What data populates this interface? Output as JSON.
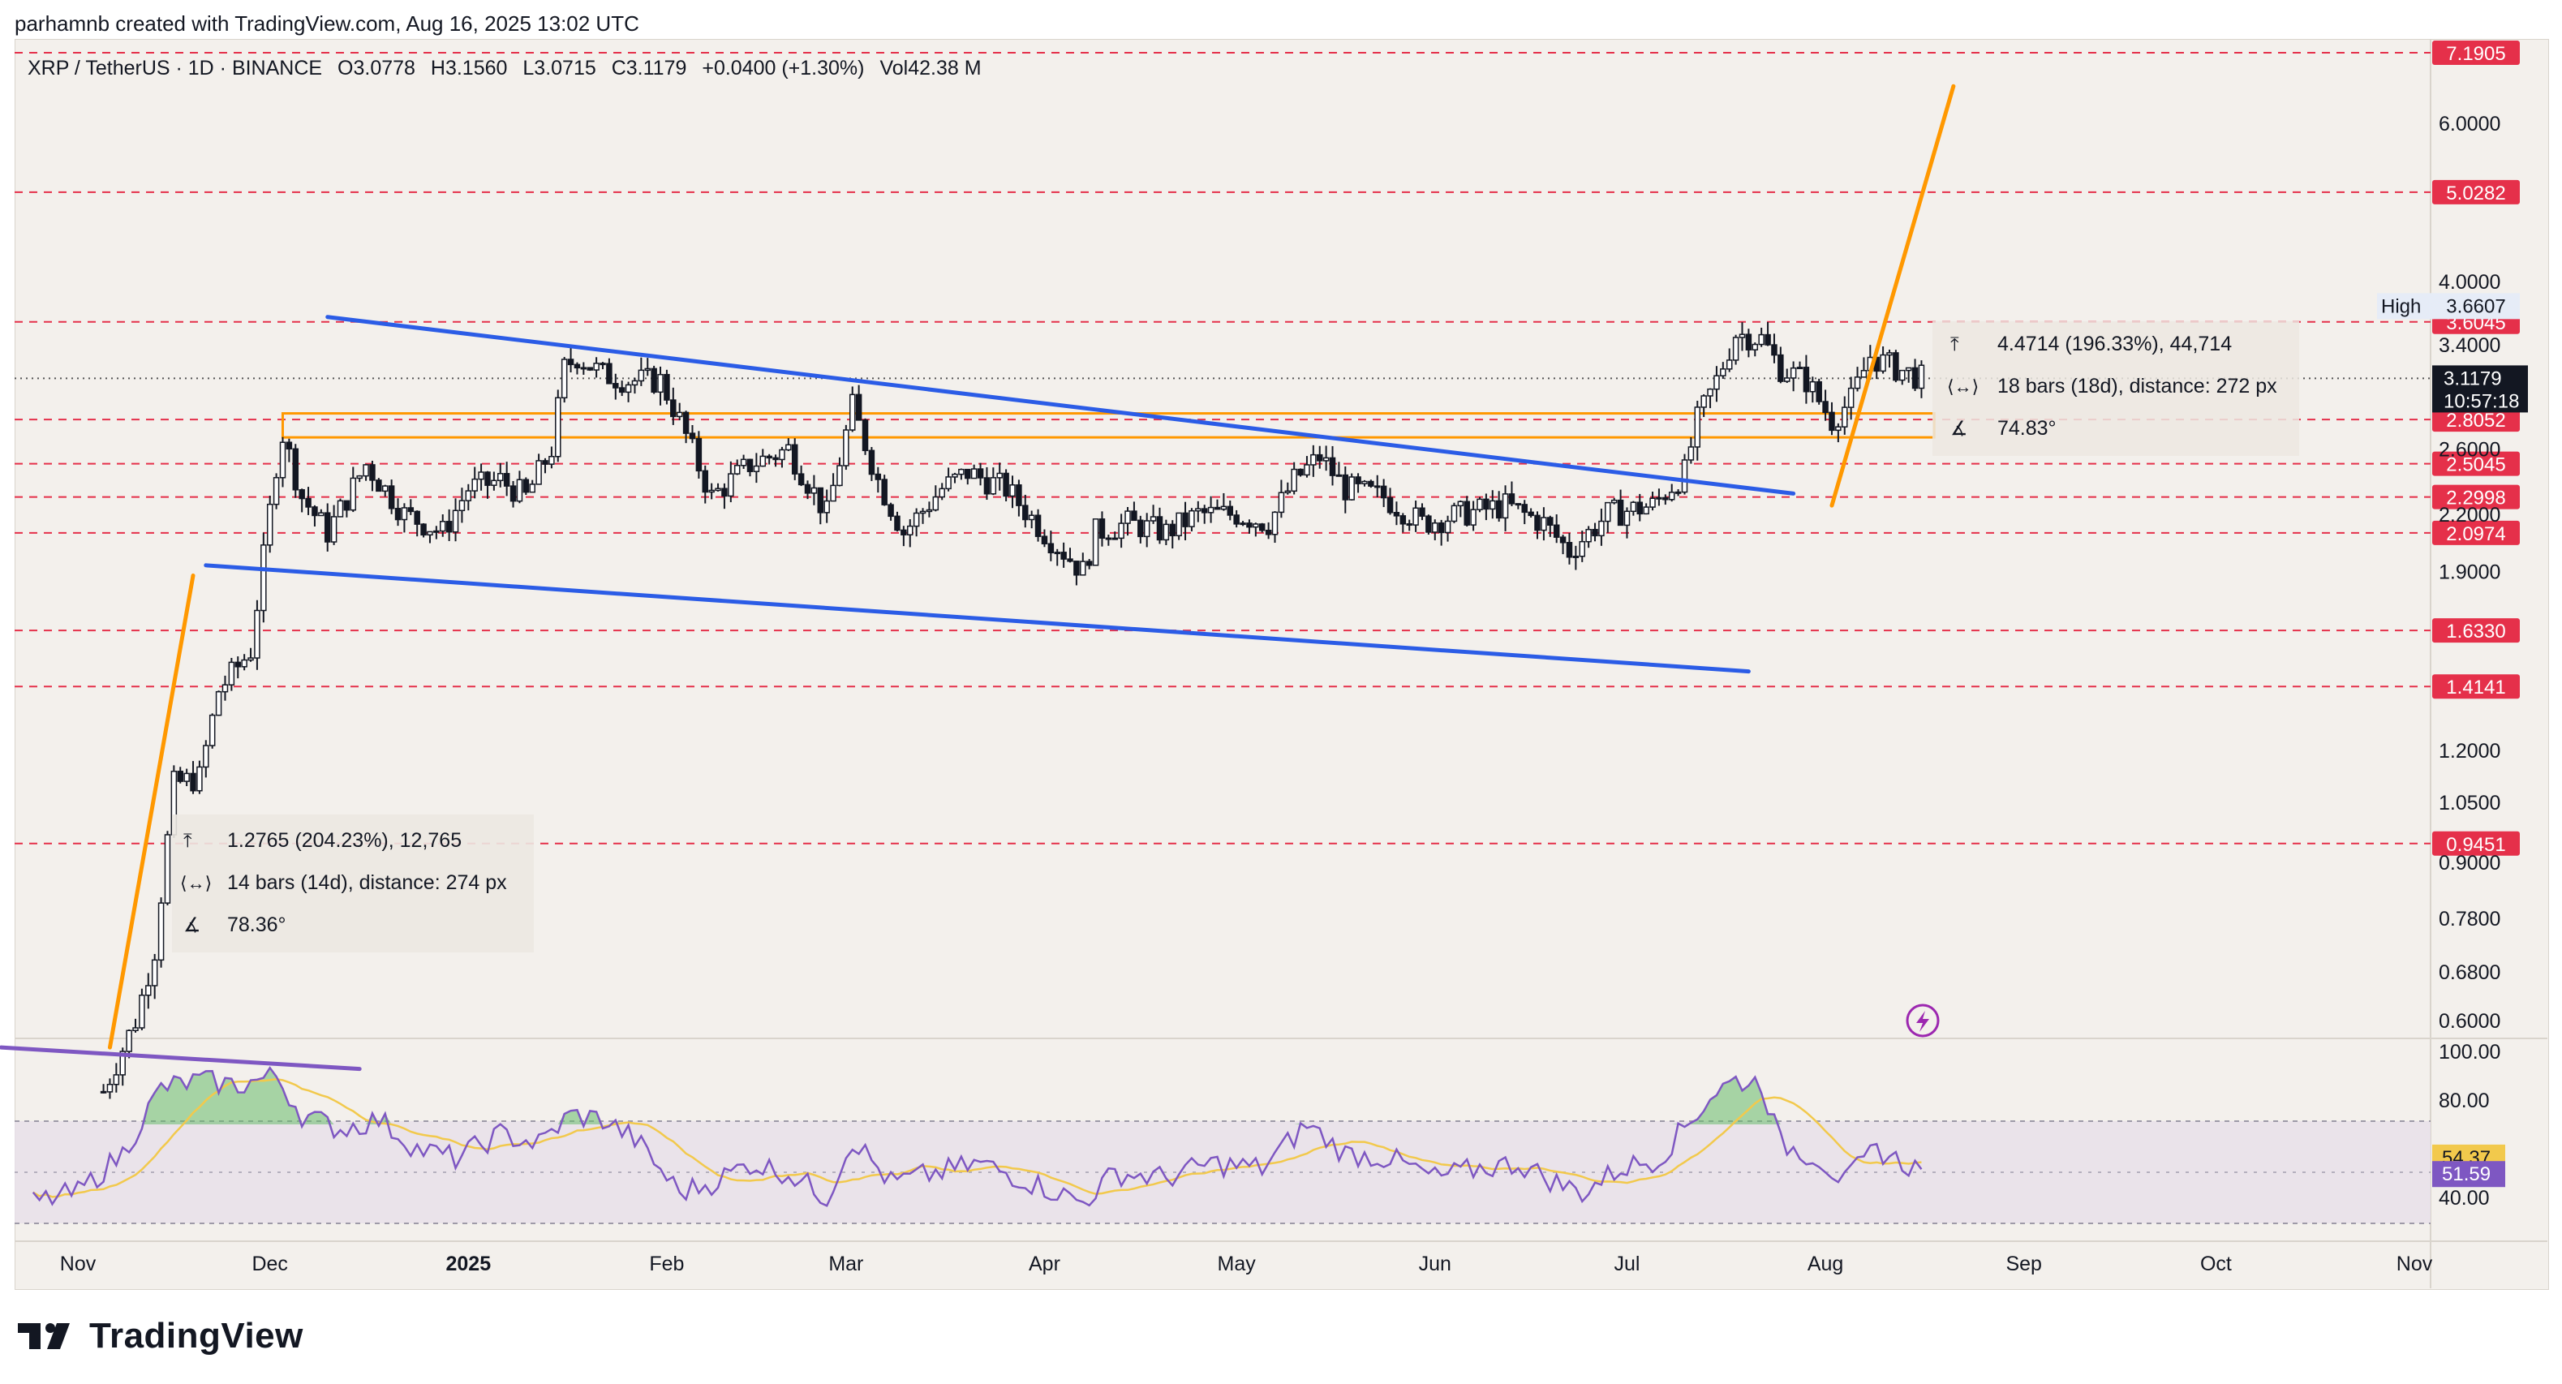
{
  "attribution": "parhamnb created with TradingView.com, Aug 16, 2025 13:02 UTC",
  "header": {
    "symbol": "XRP / TetherUS · 1D · BINANCE",
    "open": "O3.0778",
    "high": "H3.1560",
    "low": "L3.0715",
    "close": "C3.1179",
    "change": "+0.0400 (+1.30%)",
    "volume": "Vol42.38 M"
  },
  "brand": "TradingView",
  "colors": {
    "background": "#f3f0ec",
    "candle": "#131722",
    "trendline_blue": "#2b5ce6",
    "trendline_orange": "#ff9800",
    "level_line": "#e5304a",
    "rsi": "#7e57c2",
    "rsi_ma": "#f2c94c"
  },
  "chart_data": {
    "type": "candlestick",
    "scale": "log",
    "price_axis": {
      "ticks": [
        "6.0000",
        "4.0000",
        "3.4000",
        "2.6000",
        "2.2000",
        "1.9000",
        "1.2000",
        "1.0500",
        "0.9000",
        "0.7800",
        "0.6800",
        "0.6000"
      ],
      "high_label": "High",
      "high_value": "3.6607",
      "last_price": "3.1179",
      "countdown": "10:57:18"
    },
    "levels": [
      "7.1905",
      "5.0282",
      "3.6045",
      "2.8052",
      "2.5045",
      "2.2998",
      "2.0974",
      "1.6330",
      "1.4141",
      "0.9451"
    ],
    "time_axis": [
      "Nov",
      "Dec",
      "2025",
      "Feb",
      "Mar",
      "Apr",
      "May",
      "Jun",
      "Jul",
      "Aug",
      "Sep",
      "Oct",
      "Nov"
    ],
    "close_path": [
      [
        "2024-11-05",
        0.5
      ],
      [
        "2024-11-10",
        0.6
      ],
      [
        "2024-11-13",
        0.72
      ],
      [
        "2024-11-16",
        1.1
      ],
      [
        "2024-11-20",
        1.12
      ],
      [
        "2024-11-23",
        1.4
      ],
      [
        "2024-11-28",
        1.55
      ],
      [
        "2024-12-02",
        2.5
      ],
      [
        "2024-12-03",
        2.7
      ],
      [
        "2024-12-06",
        2.3
      ],
      [
        "2024-12-10",
        2.1
      ],
      [
        "2024-12-16",
        2.5
      ],
      [
        "2024-12-22",
        2.2
      ],
      [
        "2024-12-28",
        2.1
      ],
      [
        "2025-01-01",
        2.35
      ],
      [
        "2025-01-06",
        2.4
      ],
      [
        "2025-01-10",
        2.3
      ],
      [
        "2025-01-14",
        2.6
      ],
      [
        "2025-01-16",
        3.2
      ],
      [
        "2025-01-18",
        3.3
      ],
      [
        "2025-01-22",
        3.15
      ],
      [
        "2025-01-26",
        3.1
      ],
      [
        "2025-01-31",
        3.1
      ],
      [
        "2025-02-03",
        2.8
      ],
      [
        "2025-02-08",
        2.3
      ],
      [
        "2025-02-14",
        2.5
      ],
      [
        "2025-02-20",
        2.6
      ],
      [
        "2025-02-26",
        2.2
      ],
      [
        "2025-03-02",
        2.9
      ],
      [
        "2025-03-06",
        2.4
      ],
      [
        "2025-03-10",
        2.1
      ],
      [
        "2025-03-16",
        2.35
      ],
      [
        "2025-03-20",
        2.45
      ],
      [
        "2025-03-26",
        2.35
      ],
      [
        "2025-04-01",
        2.1
      ],
      [
        "2025-04-07",
        1.9
      ],
      [
        "2025-04-09",
        2.1
      ],
      [
        "2025-04-14",
        2.15
      ],
      [
        "2025-04-20",
        2.1
      ],
      [
        "2025-04-25",
        2.2
      ],
      [
        "2025-05-01",
        2.2
      ],
      [
        "2025-05-06",
        2.15
      ],
      [
        "2025-05-10",
        2.4
      ],
      [
        "2025-05-14",
        2.55
      ],
      [
        "2025-05-18",
        2.35
      ],
      [
        "2025-05-24",
        2.3
      ],
      [
        "2025-05-30",
        2.15
      ],
      [
        "2025-06-05",
        2.2
      ],
      [
        "2025-06-12",
        2.25
      ],
      [
        "2025-06-18",
        2.15
      ],
      [
        "2025-06-22",
        2.0
      ],
      [
        "2025-06-28",
        2.2
      ],
      [
        "2025-07-05",
        2.25
      ],
      [
        "2025-07-10",
        2.45
      ],
      [
        "2025-07-12",
        2.8
      ],
      [
        "2025-07-15",
        3.1
      ],
      [
        "2025-07-18",
        3.5
      ],
      [
        "2025-07-22",
        3.45
      ],
      [
        "2025-07-25",
        3.2
      ],
      [
        "2025-07-29",
        3.1
      ],
      [
        "2025-08-02",
        2.8
      ],
      [
        "2025-08-05",
        2.95
      ],
      [
        "2025-08-08",
        3.3
      ],
      [
        "2025-08-12",
        3.2
      ],
      [
        "2025-08-16",
        3.12
      ]
    ],
    "trendlines": [
      {
        "name": "channel-upper",
        "color": "#2b5ce6",
        "points": [
          [
            "2024-12-10",
            3.65
          ],
          [
            "2025-07-27",
            2.32
          ]
        ]
      },
      {
        "name": "channel-lower",
        "color": "#2b5ce6",
        "points": [
          [
            "2024-11-21",
            1.93
          ],
          [
            "2025-07-20",
            1.47
          ]
        ]
      },
      {
        "name": "impulse-1",
        "color": "#ff9800",
        "points": [
          [
            "2024-11-06",
            0.56
          ],
          [
            "2024-11-19",
            1.88
          ]
        ]
      },
      {
        "name": "impulse-2",
        "color": "#ff9800",
        "points": [
          [
            "2025-08-02",
            2.25
          ],
          [
            "2025-08-21",
            6.6
          ]
        ]
      },
      {
        "name": "base-line",
        "color": "#7e57c2",
        "points": [
          [
            "2024-10-20",
            0.56
          ],
          [
            "2024-12-15",
            0.53
          ]
        ]
      }
    ],
    "zone": {
      "from": [
        "2024-12-03",
        2.85
      ],
      "to": [
        "2025-08-18",
        2.68
      ],
      "color": "#ff9800"
    },
    "measure_1": {
      "range": "1.2765 (204.23%), 12,765",
      "bars": "14 bars (14d), distance: 274 px",
      "angle": "78.36°"
    },
    "measure_2": {
      "range": "4.4714 (196.33%), 44,714",
      "bars": "18 bars (18d), distance: 272 px",
      "angle": "74.83°"
    },
    "rsi": {
      "ticks": [
        "100.00",
        "80.00",
        "40.00"
      ],
      "value": "51.59",
      "ma_value": "54.37",
      "values": [
        [
          "2024-10-25",
          38
        ],
        [
          "2024-11-01",
          42
        ],
        [
          "2024-11-08",
          58
        ],
        [
          "2024-11-14",
          85
        ],
        [
          "2024-11-20",
          88
        ],
        [
          "2024-11-26",
          86
        ],
        [
          "2024-12-02",
          90
        ],
        [
          "2024-12-06",
          74
        ],
        [
          "2024-12-12",
          68
        ],
        [
          "2024-12-18",
          72
        ],
        [
          "2024-12-24",
          60
        ],
        [
          "2024-12-30",
          56
        ],
        [
          "2025-01-06",
          66
        ],
        [
          "2025-01-12",
          62
        ],
        [
          "2025-01-17",
          74
        ],
        [
          "2025-01-22",
          72
        ],
        [
          "2025-01-27",
          64
        ],
        [
          "2025-02-03",
          42
        ],
        [
          "2025-02-08",
          46
        ],
        [
          "2025-02-14",
          54
        ],
        [
          "2025-02-20",
          50
        ],
        [
          "2025-02-26",
          40
        ],
        [
          "2025-03-02",
          64
        ],
        [
          "2025-03-08",
          46
        ],
        [
          "2025-03-15",
          50
        ],
        [
          "2025-03-22",
          54
        ],
        [
          "2025-03-30",
          46
        ],
        [
          "2025-04-07",
          38
        ],
        [
          "2025-04-12",
          50
        ],
        [
          "2025-04-20",
          48
        ],
        [
          "2025-04-27",
          54
        ],
        [
          "2025-05-05",
          52
        ],
        [
          "2025-05-12",
          70
        ],
        [
          "2025-05-18",
          58
        ],
        [
          "2025-05-25",
          56
        ],
        [
          "2025-06-01",
          48
        ],
        [
          "2025-06-08",
          52
        ],
        [
          "2025-06-14",
          54
        ],
        [
          "2025-06-20",
          46
        ],
        [
          "2025-06-24",
          42
        ],
        [
          "2025-06-30",
          52
        ],
        [
          "2025-07-06",
          56
        ],
        [
          "2025-07-11",
          72
        ],
        [
          "2025-07-15",
          84
        ],
        [
          "2025-07-18",
          88
        ],
        [
          "2025-07-22",
          87
        ],
        [
          "2025-07-25",
          62
        ],
        [
          "2025-07-31",
          56
        ],
        [
          "2025-08-04",
          46
        ],
        [
          "2025-08-09",
          60
        ],
        [
          "2025-08-13",
          54
        ],
        [
          "2025-08-16",
          51.59
        ]
      ]
    }
  }
}
